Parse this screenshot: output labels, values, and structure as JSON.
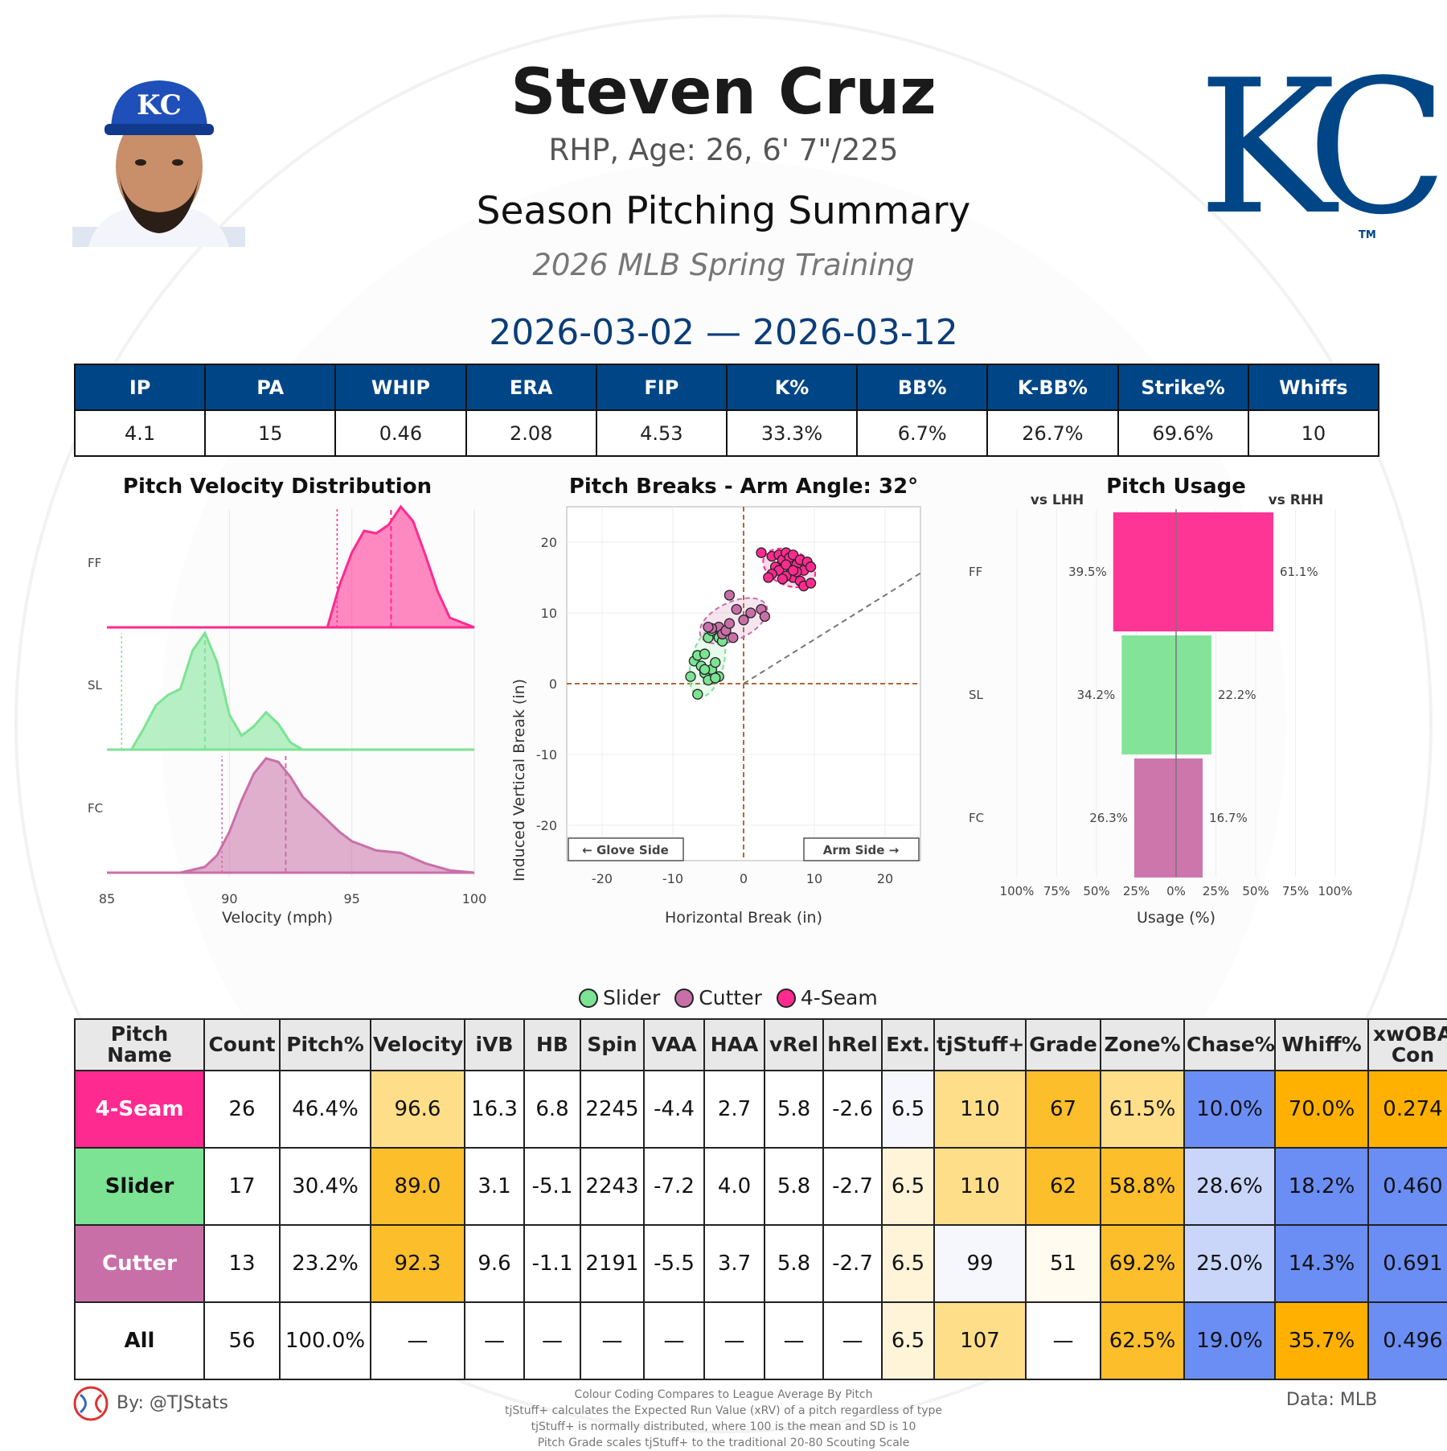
{
  "header": {
    "player_name": "Steven Cruz",
    "bio": "RHP, Age: 26, 6' 7\"/225",
    "summary_title": "Season Pitching Summary",
    "event": "2026 MLB Spring Training",
    "date_range": "2026-03-02 — 2026-03-12",
    "logo_text": "KC",
    "logo_tm": "TM",
    "cap_logo_text": "KC"
  },
  "season_stats": {
    "headers": [
      "IP",
      "PA",
      "WHIP",
      "ERA",
      "FIP",
      "K%",
      "BB%",
      "K-BB%",
      "Strike%",
      "Whiffs"
    ],
    "values": [
      "4.1",
      "15",
      "0.46",
      "2.08",
      "4.53",
      "33.3%",
      "6.7%",
      "26.7%",
      "69.6%",
      "10"
    ]
  },
  "colors": {
    "ff": "#FF2A8F",
    "sl": "#7CE394",
    "fc": "#C96FA8",
    "header_blue": "#004687",
    "orange_strong": "#FDBE2B",
    "orange_light": "#FFDE8A",
    "blue_strong": "#6B8EF5",
    "blue_light": "#C9D6FA"
  },
  "chart_data": [
    {
      "type": "area",
      "title": "Pitch Velocity Distribution",
      "xlabel": "Velocity (mph)",
      "xlim": [
        85,
        100
      ],
      "xticks": [
        "85",
        "90",
        "95",
        "100"
      ],
      "series": [
        {
          "name": "FF",
          "mean": 96.6,
          "league_avg": 94.4,
          "x": [
            94,
            94.5,
            95,
            95.5,
            96,
            96.5,
            97,
            97.5,
            98,
            98.5,
            99,
            100
          ],
          "density": [
            0,
            0.35,
            0.62,
            0.8,
            0.78,
            0.85,
            1.0,
            0.88,
            0.6,
            0.3,
            0.08,
            0.0
          ]
        },
        {
          "name": "SL",
          "mean": 89.0,
          "league_avg": 85.6,
          "x": [
            86,
            86.5,
            87,
            87.5,
            88,
            88.5,
            89,
            89.5,
            90,
            90.5,
            91,
            91.5,
            92,
            92.5,
            93,
            100
          ],
          "density": [
            0,
            0.18,
            0.38,
            0.47,
            0.52,
            0.85,
            1.0,
            0.75,
            0.3,
            0.12,
            0.2,
            0.32,
            0.22,
            0.06,
            0,
            0
          ]
        },
        {
          "name": "FC",
          "mean": 92.3,
          "league_avg": 89.7,
          "x": [
            88,
            89,
            89.5,
            90,
            90.5,
            91,
            91.5,
            92,
            92.5,
            93,
            93.5,
            94,
            94.5,
            95,
            96,
            97,
            98,
            99,
            100
          ],
          "density": [
            0,
            0.05,
            0.15,
            0.35,
            0.62,
            0.85,
            0.98,
            0.95,
            0.82,
            0.65,
            0.55,
            0.45,
            0.35,
            0.27,
            0.19,
            0.17,
            0.08,
            0.02,
            0
          ]
        }
      ]
    },
    {
      "type": "scatter",
      "title": "Pitch Breaks - Arm Angle: 32°",
      "xlabel": "Horizontal Break (in)",
      "ylabel": "Induced Vertical Break (in)",
      "xlim": [
        -25,
        25
      ],
      "ylim": [
        -25,
        25
      ],
      "xticks": [
        "-20",
        "-10",
        "0",
        "10",
        "20"
      ],
      "yticks": [
        "20",
        "10",
        "0",
        "-10",
        "-20"
      ],
      "annotations": [
        "← Glove Side",
        "Arm Side →"
      ],
      "arm_angle_deg": 32,
      "series": [
        {
          "name": "4-Seam",
          "points": [
            [
              2.5,
              18.5
            ],
            [
              4,
              18
            ],
            [
              5,
              18.2
            ],
            [
              5.5,
              17.5
            ],
            [
              6,
              18.5
            ],
            [
              6.5,
              17.8
            ],
            [
              7,
              18.2
            ],
            [
              7.5,
              16.8
            ],
            [
              8,
              17.5
            ],
            [
              8.5,
              16
            ],
            [
              9,
              17.2
            ],
            [
              9.5,
              16.5
            ],
            [
              4.5,
              16.5
            ],
            [
              5,
              16
            ],
            [
              6,
              16.8
            ],
            [
              6.5,
              15.5
            ],
            [
              7,
              15
            ],
            [
              7.5,
              15.8
            ],
            [
              8,
              14.5
            ],
            [
              8.5,
              13.8
            ],
            [
              9.5,
              14.2
            ],
            [
              4,
              15.5
            ],
            [
              3.5,
              15
            ],
            [
              6,
              15.2
            ],
            [
              7,
              16
            ],
            [
              5.5,
              14.8
            ]
          ]
        },
        {
          "name": "Slider",
          "points": [
            [
              -7.5,
              1
            ],
            [
              -7,
              3.2
            ],
            [
              -6.5,
              4
            ],
            [
              -6,
              2.5
            ],
            [
              -5.5,
              1.5
            ],
            [
              -5,
              0.5
            ],
            [
              -6.5,
              -1.5
            ],
            [
              -5.5,
              4.2
            ],
            [
              -4.5,
              2
            ],
            [
              -4,
              3
            ],
            [
              -3.5,
              1
            ],
            [
              -5,
              6.5
            ],
            [
              -4.5,
              7.5
            ],
            [
              -3.5,
              6.5
            ],
            [
              -3,
              6
            ],
            [
              -5.5,
              2
            ],
            [
              -4,
              0.8
            ]
          ]
        },
        {
          "name": "Cutter",
          "points": [
            [
              -2,
              12.5
            ],
            [
              -1,
              10.5
            ],
            [
              1,
              10
            ],
            [
              2.5,
              10.5
            ],
            [
              3,
              9.5
            ],
            [
              -3.5,
              8
            ],
            [
              -3,
              7
            ],
            [
              -2.5,
              7.5
            ],
            [
              -1.5,
              6.5
            ],
            [
              0,
              9
            ],
            [
              -4.5,
              7.8
            ],
            [
              -5,
              8
            ],
            [
              -2,
              8.5
            ]
          ]
        }
      ]
    },
    {
      "type": "bar",
      "title": "Pitch Usage",
      "xlabel": "Usage (%)",
      "left_label": "vs LHH",
      "right_label": "vs RHH",
      "categories": [
        "FF",
        "SL",
        "FC"
      ],
      "xticks": [
        "100%",
        "75%",
        "50%",
        "25%",
        "0%",
        "25%",
        "50%",
        "75%",
        "100%"
      ],
      "series": [
        {
          "name": "vs LHH",
          "values": [
            39.5,
            34.2,
            26.3
          ],
          "labels": [
            "39.5%",
            "34.2%",
            "26.3%"
          ]
        },
        {
          "name": "vs RHH",
          "values": [
            61.1,
            22.2,
            16.7
          ],
          "labels": [
            "61.1%",
            "22.2%",
            "16.7%"
          ]
        }
      ]
    }
  ],
  "legend": [
    "Slider",
    "Cutter",
    "4-Seam"
  ],
  "pitch_table": {
    "headers": [
      "Pitch Name",
      "Count",
      "Pitch%",
      "Velocity",
      "iVB",
      "HB",
      "Spin",
      "VAA",
      "HAA",
      "vRel",
      "hRel",
      "Ext.",
      "tjStuff+",
      "Grade",
      "Zone%",
      "Chase%",
      "Whiff%",
      "xwOBA Con"
    ],
    "rows": [
      {
        "name": "4-Seam",
        "cells": [
          "26",
          "46.4%",
          "96.6",
          "16.3",
          "6.8",
          "2245",
          "-4.4",
          "2.7",
          "5.8",
          "-2.6",
          "6.5",
          "110",
          "67",
          "61.5%",
          "10.0%",
          "70.0%",
          "0.274"
        ]
      },
      {
        "name": "Slider",
        "cells": [
          "17",
          "30.4%",
          "89.0",
          "3.1",
          "-5.1",
          "2243",
          "-7.2",
          "4.0",
          "5.8",
          "-2.7",
          "6.5",
          "110",
          "62",
          "58.8%",
          "28.6%",
          "18.2%",
          "0.460"
        ]
      },
      {
        "name": "Cutter",
        "cells": [
          "13",
          "23.2%",
          "92.3",
          "9.6",
          "-1.1",
          "2191",
          "-5.5",
          "3.7",
          "5.8",
          "-2.7",
          "6.5",
          "99",
          "51",
          "69.2%",
          "25.0%",
          "14.3%",
          "0.691"
        ]
      },
      {
        "name": "All",
        "cells": [
          "56",
          "100.0%",
          "—",
          "—",
          "—",
          "—",
          "—",
          "—",
          "—",
          "—",
          "6.5",
          "107",
          "—",
          "62.5%",
          "19.0%",
          "35.7%",
          "0.496"
        ]
      }
    ]
  },
  "footer": {
    "by": "By: @TJStats",
    "data": "Data: MLB",
    "notes": [
      "Colour Coding Compares to League Average By Pitch",
      "tjStuff+ calculates the Expected Run Value (xRV) of a pitch regardless of type",
      "tjStuff+ is normally distributed, where 100 is the mean and SD is 10",
      "Pitch Grade scales tjStuff+ to the traditional 20-80 Scouting Scale"
    ]
  }
}
